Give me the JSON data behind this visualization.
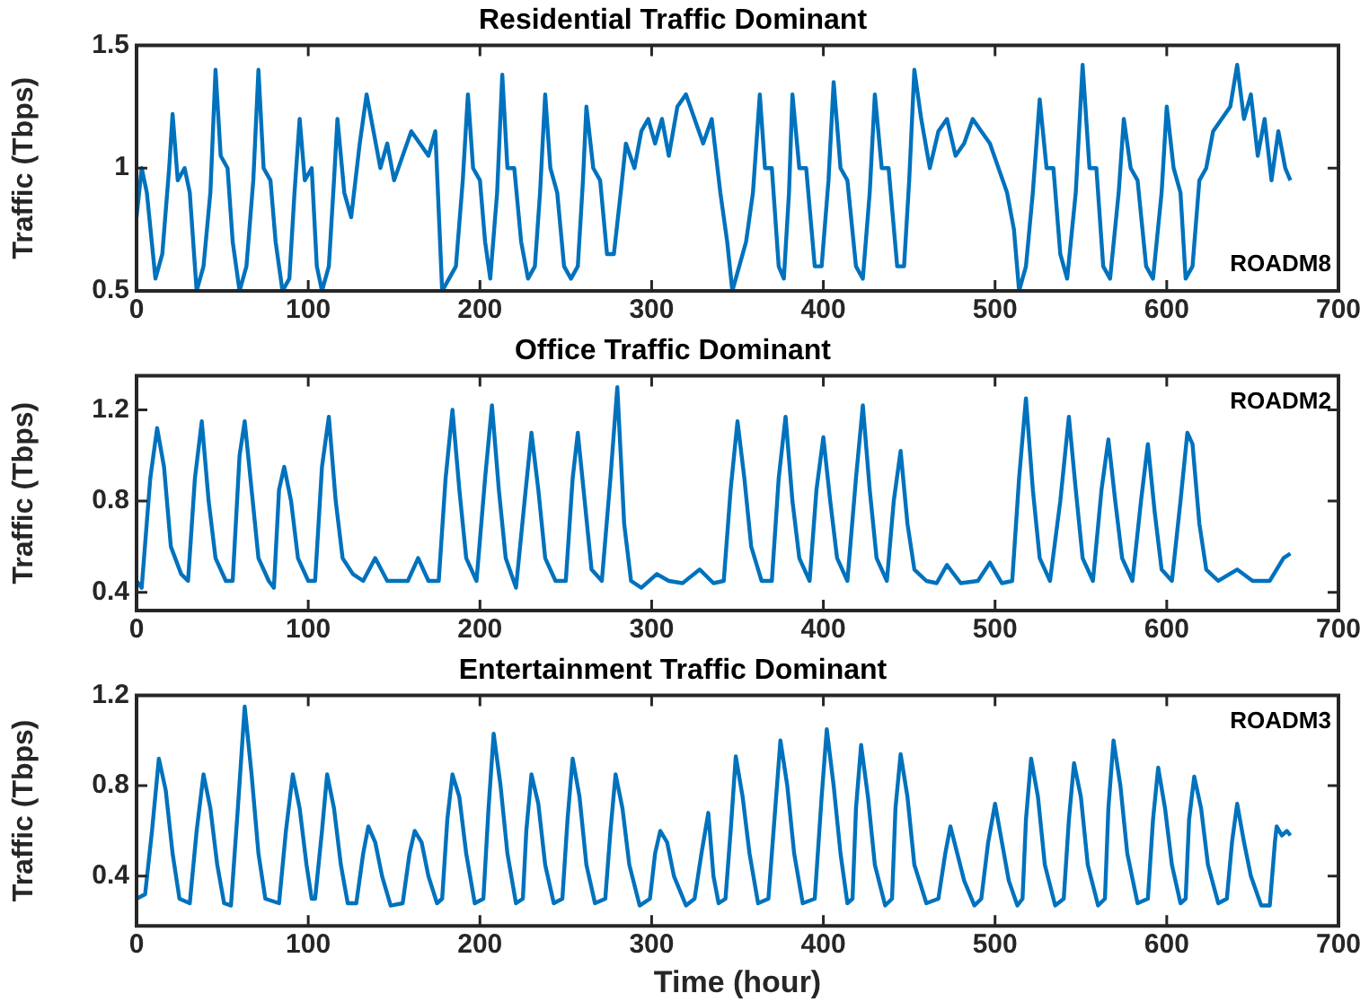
{
  "chart_data": [
    {
      "type": "line",
      "title": "Residential Traffic Dominant",
      "ylabel": "Traffic (Tbps)",
      "annotations": [
        "ROADM8"
      ],
      "color": "#0072bd",
      "marker": "none",
      "grid": false,
      "legend": false,
      "xlim": [
        0,
        700
      ],
      "xticks": [
        0,
        100,
        200,
        300,
        400,
        500,
        600,
        700
      ],
      "ylim": [
        0.5,
        1.5
      ],
      "yticks": [
        0.5,
        1,
        1.5
      ],
      "x": [
        0,
        3,
        6,
        11,
        15,
        19,
        21,
        24,
        28,
        31,
        35,
        39,
        43,
        46,
        49,
        53,
        56,
        60,
        64,
        68,
        71,
        74,
        78,
        81,
        85,
        89,
        92,
        95,
        98,
        102,
        105,
        108,
        112,
        115,
        117,
        121,
        125,
        130,
        134,
        138,
        142,
        146,
        150,
        155,
        160,
        165,
        170,
        174,
        178,
        182,
        186,
        190,
        193,
        196,
        200,
        203,
        206,
        210,
        213,
        216,
        220,
        224,
        228,
        232,
        235,
        238,
        241,
        245,
        249,
        253,
        257,
        260,
        262,
        266,
        270,
        274,
        278,
        282,
        285,
        290,
        294,
        298,
        302,
        306,
        310,
        315,
        320,
        325,
        330,
        335,
        340,
        344,
        347,
        351,
        355,
        359,
        363,
        366,
        370,
        374,
        377,
        380,
        382,
        386,
        390,
        395,
        399,
        403,
        406,
        410,
        414,
        419,
        423,
        427,
        430,
        434,
        438,
        443,
        447,
        450,
        453,
        457,
        462,
        467,
        472,
        477,
        482,
        487,
        492,
        497,
        502,
        507,
        511,
        514,
        518,
        522,
        526,
        530,
        534,
        538,
        542,
        547,
        551,
        555,
        559,
        563,
        567,
        572,
        575,
        579,
        583,
        588,
        592,
        597,
        600,
        604,
        608,
        611,
        615,
        619,
        623,
        627,
        632,
        637,
        641,
        645,
        649,
        653,
        657,
        661,
        665,
        669,
        672
      ],
      "values": [
        0.8,
        1.0,
        0.9,
        0.55,
        0.65,
        1.0,
        1.22,
        0.95,
        1.0,
        0.9,
        0.5,
        0.6,
        0.9,
        1.4,
        1.05,
        1.0,
        0.7,
        0.5,
        0.6,
        0.95,
        1.4,
        1.0,
        0.95,
        0.7,
        0.5,
        0.55,
        0.9,
        1.2,
        0.95,
        1.0,
        0.6,
        0.5,
        0.6,
        0.95,
        1.2,
        0.9,
        0.8,
        1.1,
        1.3,
        1.15,
        1.0,
        1.1,
        0.95,
        1.05,
        1.15,
        1.1,
        1.05,
        1.15,
        0.5,
        0.55,
        0.6,
        0.95,
        1.3,
        1.0,
        0.95,
        0.7,
        0.55,
        0.9,
        1.38,
        1.0,
        1.0,
        0.7,
        0.55,
        0.6,
        0.9,
        1.3,
        1.0,
        0.9,
        0.6,
        0.55,
        0.6,
        0.95,
        1.25,
        1.0,
        0.95,
        0.65,
        0.65,
        0.9,
        1.1,
        1.0,
        1.15,
        1.2,
        1.1,
        1.2,
        1.05,
        1.25,
        1.3,
        1.2,
        1.1,
        1.2,
        0.9,
        0.7,
        0.5,
        0.6,
        0.7,
        0.9,
        1.3,
        1.0,
        1.0,
        0.6,
        0.55,
        0.9,
        1.3,
        1.0,
        1.0,
        0.6,
        0.6,
        0.95,
        1.35,
        1.0,
        0.95,
        0.6,
        0.55,
        0.9,
        1.3,
        1.0,
        1.0,
        0.6,
        0.6,
        0.95,
        1.4,
        1.2,
        1.0,
        1.15,
        1.2,
        1.05,
        1.1,
        1.2,
        1.15,
        1.1,
        1.0,
        0.9,
        0.75,
        0.5,
        0.6,
        0.9,
        1.28,
        1.0,
        1.0,
        0.65,
        0.55,
        0.9,
        1.42,
        1.0,
        1.0,
        0.6,
        0.55,
        0.9,
        1.2,
        1.0,
        0.95,
        0.6,
        0.55,
        0.9,
        1.25,
        1.0,
        0.9,
        0.55,
        0.6,
        0.95,
        1.0,
        1.15,
        1.2,
        1.25,
        1.42,
        1.2,
        1.3,
        1.05,
        1.2,
        0.95,
        1.15,
        1.0,
        0.95
      ]
    },
    {
      "type": "line",
      "title": "Office Traffic Dominant",
      "ylabel": "Traffic (Tbps)",
      "annotations": [
        "ROADM2"
      ],
      "color": "#0072bd",
      "marker": "none",
      "grid": false,
      "legend": false,
      "xlim": [
        0,
        700
      ],
      "xticks": [
        0,
        100,
        200,
        300,
        400,
        500,
        600,
        700
      ],
      "ylim": [
        0.32,
        1.35
      ],
      "yticks": [
        0.4,
        0.8,
        1.2
      ],
      "x": [
        0,
        3,
        8,
        12,
        16,
        20,
        26,
        30,
        34,
        38,
        42,
        46,
        52,
        56,
        60,
        63,
        67,
        71,
        77,
        80,
        83,
        86,
        90,
        94,
        100,
        104,
        108,
        112,
        116,
        120,
        126,
        132,
        139,
        146,
        152,
        158,
        164,
        170,
        176,
        180,
        184,
        188,
        192,
        198,
        203,
        207,
        211,
        215,
        221,
        226,
        230,
        234,
        238,
        244,
        250,
        254,
        257,
        261,
        265,
        271,
        276,
        280,
        284,
        288,
        294,
        303,
        310,
        318,
        328,
        336,
        342,
        346,
        350,
        354,
        358,
        364,
        370,
        374,
        378,
        382,
        386,
        392,
        396,
        400,
        404,
        408,
        414,
        419,
        423,
        427,
        431,
        437,
        441,
        445,
        449,
        453,
        460,
        466,
        472,
        480,
        490,
        497,
        504,
        510,
        514,
        518,
        522,
        526,
        532,
        538,
        543,
        547,
        551,
        557,
        562,
        566,
        570,
        574,
        580,
        585,
        589,
        593,
        597,
        603,
        608,
        612,
        615,
        619,
        623,
        630,
        641,
        650,
        660,
        668,
        672
      ],
      "values": [
        0.45,
        0.42,
        0.9,
        1.12,
        0.95,
        0.6,
        0.48,
        0.45,
        0.9,
        1.15,
        0.8,
        0.55,
        0.45,
        0.45,
        1.0,
        1.15,
        0.85,
        0.55,
        0.45,
        0.42,
        0.85,
        0.95,
        0.8,
        0.55,
        0.45,
        0.45,
        0.95,
        1.17,
        0.8,
        0.55,
        0.48,
        0.45,
        0.55,
        0.45,
        0.45,
        0.45,
        0.55,
        0.45,
        0.45,
        0.9,
        1.2,
        0.85,
        0.55,
        0.45,
        0.9,
        1.22,
        0.85,
        0.55,
        0.42,
        0.8,
        1.1,
        0.85,
        0.55,
        0.45,
        0.45,
        0.9,
        1.1,
        0.8,
        0.5,
        0.45,
        0.9,
        1.3,
        0.7,
        0.45,
        0.42,
        0.48,
        0.45,
        0.44,
        0.5,
        0.44,
        0.45,
        0.85,
        1.15,
        0.9,
        0.6,
        0.45,
        0.45,
        0.9,
        1.17,
        0.8,
        0.55,
        0.45,
        0.85,
        1.08,
        0.8,
        0.55,
        0.45,
        0.9,
        1.22,
        0.85,
        0.55,
        0.45,
        0.8,
        1.02,
        0.7,
        0.5,
        0.45,
        0.44,
        0.52,
        0.44,
        0.45,
        0.53,
        0.44,
        0.45,
        0.9,
        1.25,
        0.85,
        0.55,
        0.45,
        0.8,
        1.17,
        0.85,
        0.55,
        0.45,
        0.85,
        1.07,
        0.8,
        0.55,
        0.45,
        0.8,
        1.05,
        0.75,
        0.5,
        0.45,
        0.8,
        1.1,
        1.05,
        0.7,
        0.5,
        0.45,
        0.5,
        0.45,
        0.45,
        0.55,
        0.57
      ]
    },
    {
      "type": "line",
      "title": "Entertainment Traffic Dominant",
      "ylabel": "Traffic (Tbps)",
      "xlabel": "Time (hour)",
      "annotations": [
        "ROADM3"
      ],
      "color": "#0072bd",
      "marker": "none",
      "grid": false,
      "legend": false,
      "xlim": [
        0,
        700
      ],
      "xticks": [
        0,
        100,
        200,
        300,
        400,
        500,
        600,
        700
      ],
      "ylim": [
        0.18,
        1.2
      ],
      "yticks": [
        0.4,
        0.8,
        1.2
      ],
      "x": [
        0,
        5,
        9,
        13,
        17,
        21,
        25,
        31,
        35,
        39,
        43,
        47,
        51,
        55,
        59,
        63,
        67,
        71,
        75,
        83,
        87,
        91,
        95,
        99,
        102,
        104,
        108,
        111,
        115,
        119,
        123,
        128,
        132,
        135,
        139,
        143,
        148,
        155,
        159,
        162,
        166,
        170,
        175,
        178,
        181,
        184,
        188,
        192,
        197,
        202,
        205,
        208,
        212,
        216,
        221,
        225,
        227,
        230,
        234,
        238,
        243,
        248,
        251,
        254,
        258,
        262,
        267,
        273,
        276,
        279,
        283,
        287,
        293,
        299,
        302,
        305,
        309,
        313,
        320,
        325,
        329,
        333,
        336,
        339,
        343,
        346,
        349,
        353,
        357,
        362,
        368,
        372,
        375,
        379,
        383,
        388,
        395,
        399,
        402,
        406,
        410,
        414,
        417,
        419,
        422,
        426,
        430,
        436,
        440,
        442,
        445,
        449,
        453,
        460,
        467,
        471,
        474,
        478,
        482,
        488,
        492,
        496,
        500,
        504,
        508,
        513,
        516,
        518,
        521,
        525,
        529,
        535,
        540,
        543,
        546,
        550,
        554,
        560,
        564,
        566,
        569,
        573,
        577,
        583,
        589,
        592,
        595,
        599,
        603,
        608,
        611,
        613,
        616,
        620,
        624,
        630,
        635,
        638,
        641,
        645,
        649,
        655,
        660,
        663,
        664,
        667,
        670,
        672
      ],
      "values": [
        0.3,
        0.32,
        0.6,
        0.92,
        0.78,
        0.5,
        0.3,
        0.28,
        0.6,
        0.85,
        0.7,
        0.45,
        0.28,
        0.27,
        0.7,
        1.15,
        0.85,
        0.5,
        0.3,
        0.28,
        0.6,
        0.85,
        0.7,
        0.45,
        0.3,
        0.3,
        0.6,
        0.85,
        0.7,
        0.45,
        0.28,
        0.28,
        0.5,
        0.62,
        0.55,
        0.4,
        0.27,
        0.28,
        0.5,
        0.6,
        0.55,
        0.4,
        0.28,
        0.3,
        0.65,
        0.85,
        0.75,
        0.5,
        0.28,
        0.3,
        0.7,
        1.03,
        0.8,
        0.5,
        0.28,
        0.3,
        0.6,
        0.85,
        0.72,
        0.45,
        0.28,
        0.3,
        0.65,
        0.92,
        0.75,
        0.45,
        0.28,
        0.3,
        0.6,
        0.85,
        0.7,
        0.45,
        0.27,
        0.3,
        0.5,
        0.6,
        0.55,
        0.4,
        0.27,
        0.3,
        0.5,
        0.68,
        0.4,
        0.28,
        0.3,
        0.6,
        0.93,
        0.75,
        0.5,
        0.28,
        0.3,
        0.7,
        1.0,
        0.8,
        0.5,
        0.28,
        0.3,
        0.75,
        1.05,
        0.8,
        0.5,
        0.28,
        0.3,
        0.7,
        0.98,
        0.75,
        0.45,
        0.27,
        0.3,
        0.7,
        0.94,
        0.75,
        0.45,
        0.28,
        0.3,
        0.5,
        0.62,
        0.5,
        0.38,
        0.27,
        0.3,
        0.55,
        0.72,
        0.55,
        0.38,
        0.27,
        0.3,
        0.65,
        0.92,
        0.75,
        0.45,
        0.27,
        0.3,
        0.65,
        0.9,
        0.75,
        0.45,
        0.27,
        0.3,
        0.7,
        1.0,
        0.8,
        0.5,
        0.28,
        0.3,
        0.65,
        0.88,
        0.7,
        0.45,
        0.28,
        0.3,
        0.65,
        0.84,
        0.7,
        0.45,
        0.28,
        0.3,
        0.55,
        0.72,
        0.55,
        0.4,
        0.27,
        0.27,
        0.55,
        0.62,
        0.58,
        0.6,
        0.58
      ]
    }
  ]
}
